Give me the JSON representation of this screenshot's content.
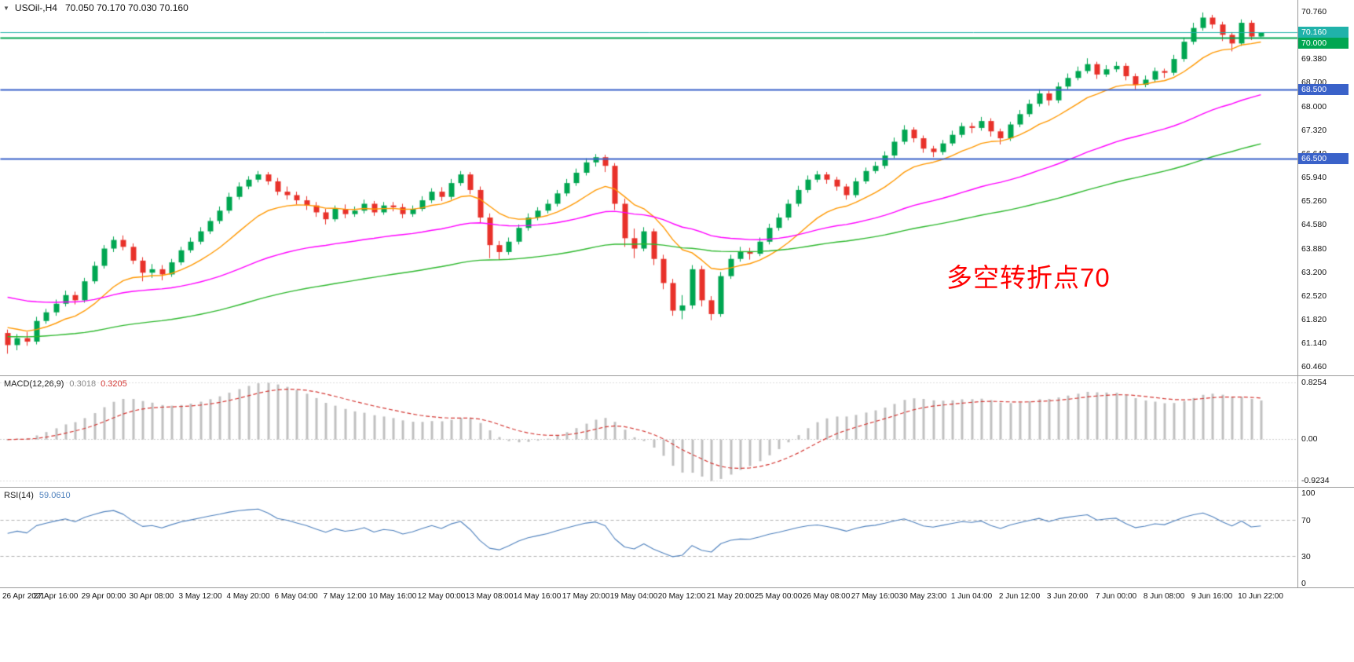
{
  "window": {
    "header": {
      "toggle_icon": "▼",
      "symbol_period": "USOil-,H4",
      "ohlc": "70.050 70.170 70.030 70.160"
    }
  },
  "annotation": {
    "text": "多空转折点70",
    "color": "#ff0000"
  },
  "colors": {
    "background": "#ffffff",
    "bull": "#00a651",
    "bear": "#e8312a",
    "separator": "#9a9a9a",
    "axis_text": "#111111"
  },
  "chart_data": {
    "type": "candlestick",
    "symbol": "USOil",
    "timeframe": "H4",
    "current_bar": {
      "open": 70.05,
      "high": 70.17,
      "low": 70.03,
      "close": 70.16
    },
    "x_labels": [
      "26 Apr 2021",
      "27 Apr 16:00",
      "29 Apr 00:00",
      "30 Apr 08:00",
      "3 May 12:00",
      "4 May 20:00",
      "6 May 04:00",
      "7 May 12:00",
      "10 May 16:00",
      "12 May 00:00",
      "13 May 08:00",
      "14 May 16:00",
      "17 May 20:00",
      "19 May 04:00",
      "20 May 12:00",
      "21 May 20:00",
      "25 May 00:00",
      "26 May 08:00",
      "27 May 16:00",
      "30 May 23:00",
      "1 Jun 04:00",
      "2 Jun 12:00",
      "3 Jun 20:00",
      "7 Jun 00:00",
      "8 Jun 08:00",
      "9 Jun 16:00",
      "10 Jun 22:00"
    ],
    "label_every_n_candles": 5,
    "price_axis": {
      "min": 60.21,
      "max": 71.1,
      "ticks": [
        "70.760",
        "69.380",
        "68.700",
        "68.000",
        "67.320",
        "66.640",
        "65.940",
        "65.260",
        "64.580",
        "63.880",
        "63.200",
        "62.520",
        "61.820",
        "61.140",
        "60.460"
      ]
    },
    "price_tags": [
      {
        "value": 70.16,
        "label": "70.160",
        "color": "#20b2aa",
        "line": "solid",
        "width": 1,
        "name": "bid-price-tag"
      },
      {
        "value": 70.0,
        "label": "70.000",
        "color": "#00a651",
        "line": "solid",
        "width": 2,
        "name": "level-70-tag"
      },
      {
        "value": 68.5,
        "label": "68.500",
        "color": "#3a62c9",
        "line": "solid",
        "width": 2,
        "name": "level-68-5-tag"
      },
      {
        "value": 66.5,
        "label": "66.500",
        "color": "#3a62c9",
        "line": "solid",
        "width": 2,
        "name": "level-66-5-tag"
      }
    ],
    "moving_averages": [
      {
        "period": 12,
        "seed": 61.7,
        "color": "#ff9800",
        "name": "fast-ma-orange"
      },
      {
        "period": 45,
        "seed": 62.55,
        "color": "#ff00ff",
        "name": "mid-ma-magenta"
      },
      {
        "period": 90,
        "seed": 61.35,
        "color": "#2eb82e",
        "name": "slow-ma-green"
      }
    ],
    "indicators": {
      "macd": {
        "label": "MACD(12,26,9)",
        "main_value": "0.3018",
        "signal_value": "0.3205",
        "fast": 12,
        "slow": 26,
        "signal": 9,
        "axis_high": "0.8254",
        "axis_zero": "0.00",
        "axis_low": "-0.9234",
        "histogram_color": "#c0c0c0",
        "signal_color": "#d43a36"
      },
      "rsi": {
        "label": "RSI(14)",
        "value": "59.0610",
        "period": 14,
        "levels": [
          "100",
          "70",
          "30",
          "0"
        ],
        "upper": 70,
        "lower": 30,
        "line_color": "#4f81bd"
      }
    },
    "candles": [
      [
        61.45,
        61.55,
        60.85,
        61.1
      ],
      [
        61.1,
        61.42,
        60.95,
        61.3
      ],
      [
        61.3,
        61.48,
        61.08,
        61.2
      ],
      [
        61.2,
        61.92,
        61.12,
        61.8
      ],
      [
        61.8,
        62.15,
        61.72,
        62.05
      ],
      [
        62.05,
        62.42,
        61.95,
        62.3
      ],
      [
        62.3,
        62.68,
        62.22,
        62.55
      ],
      [
        62.55,
        62.65,
        62.28,
        62.4
      ],
      [
        62.4,
        63.05,
        62.33,
        62.95
      ],
      [
        62.95,
        63.52,
        62.88,
        63.4
      ],
      [
        63.4,
        64.0,
        63.32,
        63.9
      ],
      [
        63.9,
        64.25,
        63.8,
        64.15
      ],
      [
        64.15,
        64.28,
        63.85,
        63.95
      ],
      [
        63.95,
        64.05,
        63.45,
        63.55
      ],
      [
        63.55,
        63.65,
        62.95,
        63.2
      ],
      [
        63.2,
        63.45,
        63.05,
        63.3
      ],
      [
        63.3,
        63.42,
        62.98,
        63.15
      ],
      [
        63.15,
        63.6,
        63.08,
        63.5
      ],
      [
        63.5,
        63.95,
        63.42,
        63.85
      ],
      [
        63.85,
        64.22,
        63.78,
        64.1
      ],
      [
        64.1,
        64.52,
        64.02,
        64.4
      ],
      [
        64.4,
        64.8,
        64.32,
        64.7
      ],
      [
        64.7,
        65.12,
        64.62,
        65.0
      ],
      [
        65.0,
        65.52,
        64.92,
        65.4
      ],
      [
        65.4,
        65.82,
        65.32,
        65.7
      ],
      [
        65.7,
        66.0,
        65.62,
        65.9
      ],
      [
        65.9,
        66.15,
        65.82,
        66.05
      ],
      [
        66.05,
        66.12,
        65.75,
        65.85
      ],
      [
        65.85,
        65.95,
        65.45,
        65.55
      ],
      [
        65.55,
        65.7,
        65.32,
        65.45
      ],
      [
        65.45,
        65.55,
        65.18,
        65.3
      ],
      [
        65.3,
        65.42,
        65.02,
        65.15
      ],
      [
        65.15,
        65.25,
        64.82,
        64.95
      ],
      [
        64.95,
        65.05,
        64.6,
        64.75
      ],
      [
        64.75,
        65.15,
        64.68,
        65.05
      ],
      [
        65.05,
        65.18,
        64.78,
        64.9
      ],
      [
        64.9,
        65.12,
        64.82,
        65.0
      ],
      [
        65.0,
        65.32,
        64.92,
        65.2
      ],
      [
        65.2,
        65.28,
        64.85,
        64.95
      ],
      [
        64.95,
        65.25,
        64.88,
        65.15
      ],
      [
        65.15,
        65.25,
        64.98,
        65.1
      ],
      [
        65.1,
        65.2,
        64.78,
        64.9
      ],
      [
        64.9,
        65.15,
        64.82,
        65.05
      ],
      [
        65.05,
        65.42,
        64.98,
        65.3
      ],
      [
        65.3,
        65.65,
        65.22,
        65.55
      ],
      [
        65.55,
        65.68,
        65.28,
        65.4
      ],
      [
        65.4,
        65.92,
        65.32,
        65.8
      ],
      [
        65.8,
        66.15,
        65.72,
        66.05
      ],
      [
        66.05,
        66.12,
        65.48,
        65.6
      ],
      [
        65.6,
        65.7,
        64.65,
        64.8
      ],
      [
        64.8,
        64.92,
        63.62,
        64.0
      ],
      [
        64.0,
        64.12,
        63.58,
        63.8
      ],
      [
        63.8,
        64.22,
        63.72,
        64.1
      ],
      [
        64.1,
        64.6,
        64.02,
        64.5
      ],
      [
        64.5,
        64.92,
        64.42,
        64.8
      ],
      [
        64.8,
        65.1,
        64.72,
        65.0
      ],
      [
        65.0,
        65.32,
        64.92,
        65.2
      ],
      [
        65.2,
        65.6,
        65.12,
        65.5
      ],
      [
        65.5,
        65.92,
        65.42,
        65.8
      ],
      [
        65.8,
        66.22,
        65.72,
        66.1
      ],
      [
        66.1,
        66.52,
        66.02,
        66.4
      ],
      [
        66.4,
        66.64,
        66.28,
        66.55
      ],
      [
        66.55,
        66.62,
        66.12,
        66.3
      ],
      [
        66.3,
        66.38,
        65.02,
        65.2
      ],
      [
        65.2,
        65.35,
        63.95,
        64.2
      ],
      [
        64.2,
        64.48,
        63.62,
        63.9
      ],
      [
        63.9,
        64.52,
        63.82,
        64.4
      ],
      [
        64.4,
        64.48,
        63.42,
        63.6
      ],
      [
        63.6,
        63.72,
        62.72,
        62.9
      ],
      [
        62.9,
        63.02,
        61.95,
        62.1
      ],
      [
        62.1,
        62.55,
        61.85,
        62.25
      ],
      [
        62.25,
        63.42,
        62.15,
        63.3
      ],
      [
        63.3,
        63.4,
        62.22,
        62.4
      ],
      [
        62.4,
        62.52,
        61.82,
        62.0
      ],
      [
        62.0,
        63.22,
        61.92,
        63.1
      ],
      [
        63.1,
        63.72,
        63.02,
        63.6
      ],
      [
        63.6,
        63.95,
        63.52,
        63.8
      ],
      [
        63.8,
        63.92,
        63.58,
        63.75
      ],
      [
        63.75,
        64.22,
        63.68,
        64.1
      ],
      [
        64.1,
        64.62,
        64.02,
        64.5
      ],
      [
        64.5,
        64.92,
        64.42,
        64.8
      ],
      [
        64.8,
        65.32,
        64.72,
        65.2
      ],
      [
        65.2,
        65.72,
        65.12,
        65.6
      ],
      [
        65.6,
        66.02,
        65.52,
        65.9
      ],
      [
        65.9,
        66.15,
        65.82,
        66.05
      ],
      [
        66.05,
        66.12,
        65.78,
        65.9
      ],
      [
        65.9,
        65.98,
        65.58,
        65.7
      ],
      [
        65.7,
        65.78,
        65.32,
        65.45
      ],
      [
        65.45,
        65.95,
        65.38,
        65.85
      ],
      [
        65.85,
        66.25,
        65.78,
        66.15
      ],
      [
        66.15,
        66.42,
        66.08,
        66.3
      ],
      [
        66.3,
        66.72,
        66.22,
        66.6
      ],
      [
        66.6,
        67.12,
        66.52,
        67.0
      ],
      [
        67.0,
        67.48,
        66.92,
        67.35
      ],
      [
        67.35,
        67.42,
        66.98,
        67.1
      ],
      [
        67.1,
        67.18,
        66.68,
        66.8
      ],
      [
        66.8,
        66.88,
        66.55,
        66.7
      ],
      [
        66.7,
        67.05,
        66.62,
        66.95
      ],
      [
        66.95,
        67.32,
        66.88,
        67.2
      ],
      [
        67.2,
        67.55,
        67.12,
        67.45
      ],
      [
        67.45,
        67.55,
        67.25,
        67.4
      ],
      [
        67.4,
        67.72,
        67.32,
        67.6
      ],
      [
        67.6,
        67.68,
        67.15,
        67.3
      ],
      [
        67.3,
        67.38,
        66.92,
        67.1
      ],
      [
        67.1,
        67.58,
        67.02,
        67.5
      ],
      [
        67.5,
        67.92,
        67.42,
        67.8
      ],
      [
        67.8,
        68.22,
        67.72,
        68.1
      ],
      [
        68.1,
        68.52,
        68.02,
        68.4
      ],
      [
        68.4,
        68.48,
        68.05,
        68.2
      ],
      [
        68.2,
        68.72,
        68.12,
        68.6
      ],
      [
        68.6,
        68.98,
        68.52,
        68.85
      ],
      [
        68.85,
        69.18,
        68.78,
        69.05
      ],
      [
        69.05,
        69.42,
        68.98,
        69.25
      ],
      [
        69.25,
        69.32,
        68.82,
        68.95
      ],
      [
        68.95,
        69.22,
        68.88,
        69.1
      ],
      [
        69.1,
        69.32,
        69.02,
        69.2
      ],
      [
        69.2,
        69.28,
        68.78,
        68.9
      ],
      [
        68.9,
        68.98,
        68.52,
        68.65
      ],
      [
        68.65,
        68.92,
        68.58,
        68.8
      ],
      [
        68.8,
        69.15,
        68.72,
        69.05
      ],
      [
        69.05,
        69.12,
        68.85,
        69.0
      ],
      [
        69.0,
        69.52,
        68.92,
        69.4
      ],
      [
        69.4,
        70.02,
        69.32,
        69.9
      ],
      [
        69.9,
        70.45,
        69.82,
        70.3
      ],
      [
        70.3,
        70.75,
        70.22,
        70.6
      ],
      [
        70.6,
        70.68,
        70.28,
        70.4
      ],
      [
        70.4,
        70.48,
        69.92,
        70.1
      ],
      [
        70.1,
        70.18,
        69.62,
        69.85
      ],
      [
        69.85,
        70.55,
        69.78,
        70.45
      ],
      [
        70.45,
        70.52,
        69.95,
        70.05
      ],
      [
        70.05,
        70.17,
        70.03,
        70.16
      ]
    ]
  }
}
